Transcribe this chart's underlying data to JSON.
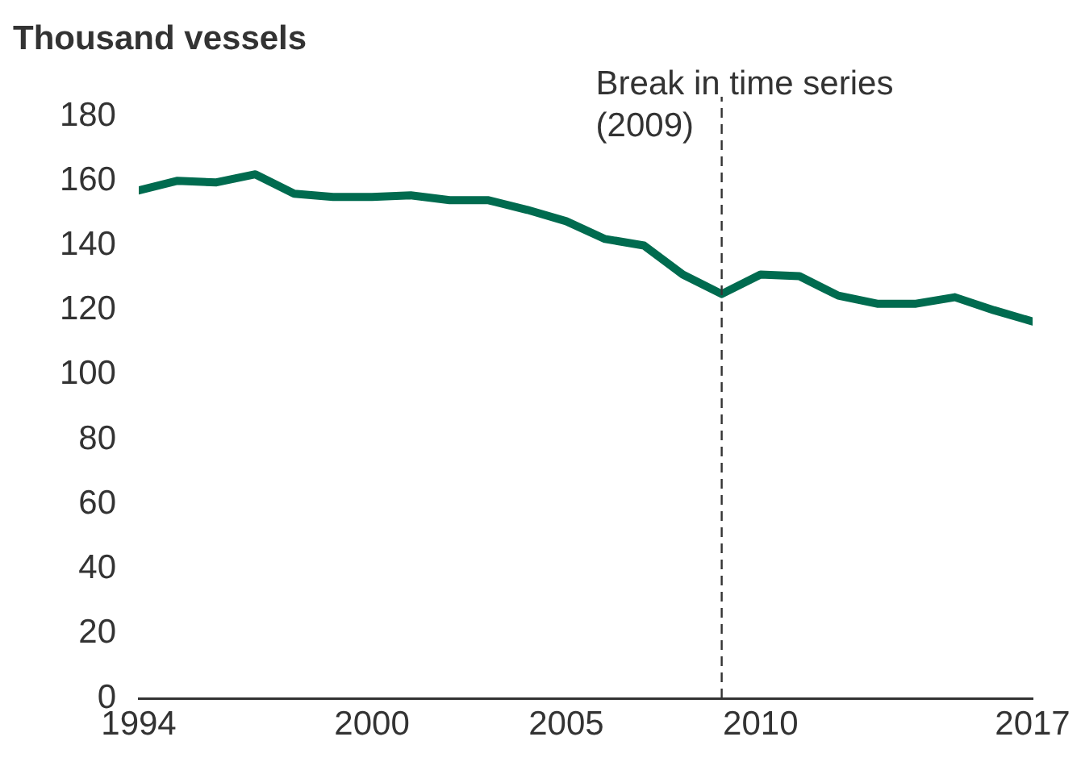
{
  "chart_data": {
    "type": "line",
    "ylabel": "Thousand vessels",
    "x": [
      1994,
      1995,
      1996,
      1997,
      1998,
      1999,
      2000,
      2001,
      2002,
      2003,
      2004,
      2005,
      2006,
      2007,
      2008,
      2009,
      2010,
      2011,
      2012,
      2013,
      2014,
      2015,
      2016,
      2017
    ],
    "series": [
      {
        "color": "#006b4f",
        "values": [
          157,
          160,
          159.5,
          162,
          156,
          155,
          155,
          155.5,
          154,
          154,
          151,
          147.5,
          142,
          140,
          131,
          125,
          131,
          130.5,
          124.5,
          122,
          122,
          124,
          120,
          116.5
        ]
      }
    ],
    "xlim": [
      1994,
      2017
    ],
    "xticks": [
      1994,
      2000,
      2005,
      2010,
      2017
    ],
    "ylim": [
      0,
      180
    ],
    "yticks": [
      0,
      20,
      40,
      60,
      80,
      100,
      120,
      140,
      160,
      180
    ],
    "ref_lines": [
      {
        "axis": "x",
        "value": 2009,
        "label": "Break in time series (2009)",
        "color": "#333333",
        "line_style": "dashed"
      }
    ],
    "grid": false,
    "legend": false,
    "marker": "none",
    "line_style": "solid"
  }
}
